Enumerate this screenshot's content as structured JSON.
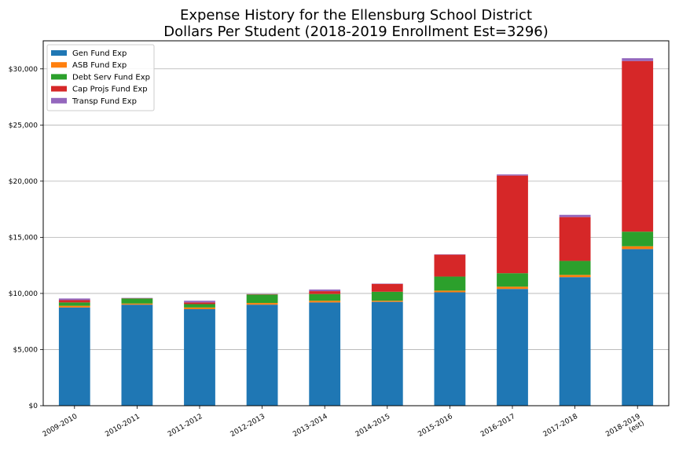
{
  "chart_data": {
    "type": "bar",
    "stacked": true,
    "title": "Expense History for the Ellensburg School District",
    "subtitle": "Dollars Per Student (2018-2019 Enrollment Est=3296)",
    "xlabel": "",
    "ylabel": "",
    "ylim": [
      0,
      32500
    ],
    "yticks": [
      0,
      5000,
      10000,
      15000,
      20000,
      25000,
      30000
    ],
    "ytick_labels": [
      "$0",
      "$5,000",
      "$10,000",
      "$15,000",
      "$20,000",
      "$25,000",
      "$30,000"
    ],
    "grid": "horizontal",
    "legend_position": "top-left",
    "categories": [
      "2009-2010",
      "2010-2011",
      "2011-2012",
      "2012-2013",
      "2013-2014",
      "2014-2015",
      "2015-2016",
      "2016-2017",
      "2017-2018",
      "2018-2019\n(est)"
    ],
    "series": [
      {
        "name": "Gen Fund Exp",
        "color": "#1f77b4",
        "values": [
          8750,
          9000,
          8600,
          9000,
          9200,
          9250,
          10100,
          10400,
          11450,
          13950
        ]
      },
      {
        "name": "ASB Fund Exp",
        "color": "#ff7f0e",
        "values": [
          150,
          100,
          150,
          150,
          150,
          100,
          150,
          200,
          200,
          250
        ]
      },
      {
        "name": "Debt Serv Fund Exp",
        "color": "#2ca02c",
        "values": [
          300,
          450,
          300,
          750,
          600,
          800,
          1250,
          1200,
          1250,
          1300
        ]
      },
      {
        "name": "Cap Projs Fund Exp",
        "color": "#d62728",
        "values": [
          200,
          20,
          150,
          30,
          250,
          700,
          1950,
          8700,
          3900,
          15200
        ]
      },
      {
        "name": "Transp Fund Exp",
        "color": "#9467bd",
        "values": [
          150,
          30,
          150,
          20,
          150,
          30,
          30,
          100,
          200,
          250
        ]
      }
    ]
  }
}
